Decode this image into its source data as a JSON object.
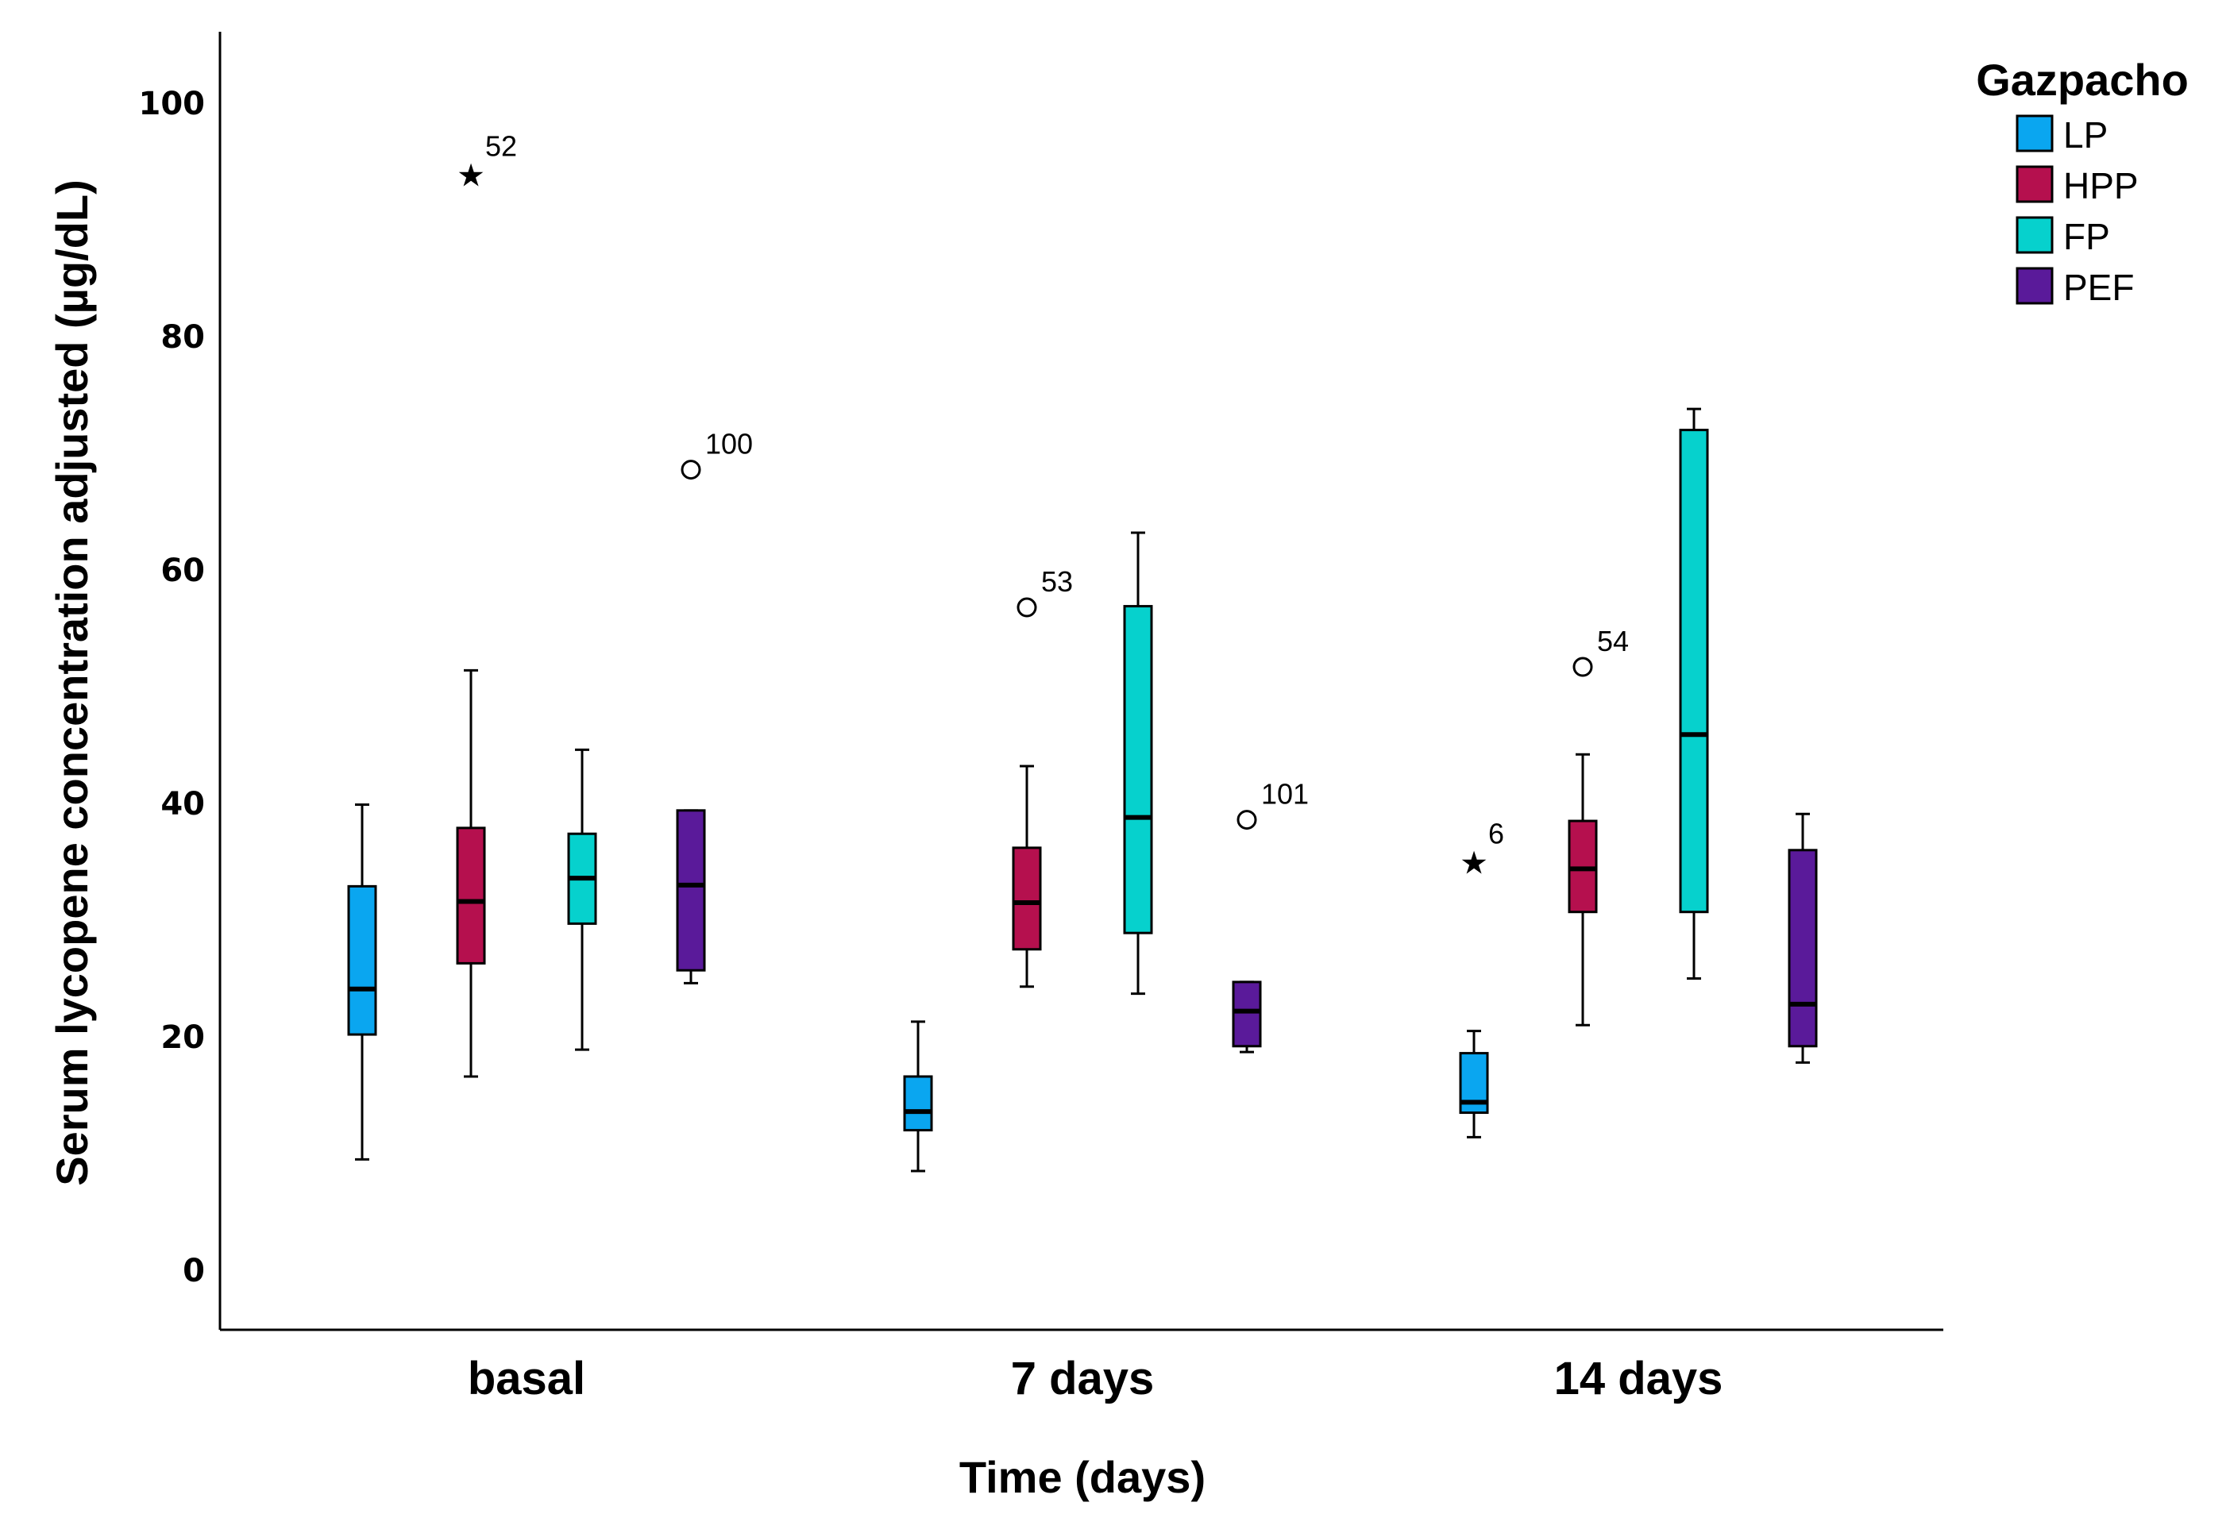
{
  "chart_data": {
    "type": "boxplot",
    "title": "",
    "xlabel": "Time (days)",
    "ylabel": "Serum lycopene concentration adjusted (µg/dL)",
    "ylim": [
      -5,
      106
    ],
    "yticks": [
      0,
      20,
      40,
      60,
      80,
      100
    ],
    "categories": [
      "basal",
      "7 days",
      "14 days"
    ],
    "legend": {
      "title": "Gazpacho",
      "position": "top-right"
    },
    "series": [
      {
        "name": "LP",
        "color": "#0aa6f0",
        "boxes": [
          {
            "whisker_low": 9.5,
            "q1": 20.2,
            "median": 24.1,
            "q3": 32.9,
            "whisker_high": 39.9,
            "outliers": []
          },
          {
            "whisker_low": 8.5,
            "q1": 12.0,
            "median": 13.6,
            "q3": 16.6,
            "whisker_high": 21.3,
            "outliers": []
          },
          {
            "whisker_low": 11.4,
            "q1": 13.5,
            "median": 14.4,
            "q3": 18.6,
            "whisker_high": 20.5,
            "outliers": [
              {
                "value": 35.2,
                "label": "6",
                "marker": "star"
              }
            ]
          }
        ]
      },
      {
        "name": "HPP",
        "color": "#b5104e",
        "boxes": [
          {
            "whisker_low": 16.6,
            "q1": 26.3,
            "median": 31.6,
            "q3": 37.9,
            "whisker_high": 51.4,
            "outliers": [
              {
                "value": 94.1,
                "label": "52",
                "marker": "star"
              }
            ]
          },
          {
            "whisker_low": 24.3,
            "q1": 27.5,
            "median": 31.5,
            "q3": 36.2,
            "whisker_high": 43.2,
            "outliers": [
              {
                "value": 56.8,
                "label": "53",
                "marker": "circle"
              }
            ]
          },
          {
            "whisker_low": 21.0,
            "q1": 30.7,
            "median": 34.4,
            "q3": 38.5,
            "whisker_high": 44.2,
            "outliers": [
              {
                "value": 51.7,
                "label": "54",
                "marker": "circle"
              }
            ]
          }
        ]
      },
      {
        "name": "FP",
        "color": "#06d1cd",
        "boxes": [
          {
            "whisker_low": 18.9,
            "q1": 29.7,
            "median": 33.6,
            "q3": 37.4,
            "whisker_high": 44.6,
            "outliers": []
          },
          {
            "whisker_low": 23.7,
            "q1": 28.9,
            "median": 38.8,
            "q3": 56.9,
            "whisker_high": 63.2,
            "outliers": []
          },
          {
            "whisker_low": 25.0,
            "q1": 30.7,
            "median": 45.9,
            "q3": 72.0,
            "whisker_high": 73.8,
            "outliers": []
          }
        ]
      },
      {
        "name": "PEF",
        "color": "#5a1a9a",
        "boxes": [
          {
            "whisker_low": 24.6,
            "q1": 25.7,
            "median": 33.0,
            "q3": 39.4,
            "whisker_high": 39.4,
            "outliers": [
              {
                "value": 68.6,
                "label": "100",
                "marker": "circle"
              }
            ]
          },
          {
            "whisker_low": 18.7,
            "q1": 19.2,
            "median": 22.2,
            "q3": 24.7,
            "whisker_high": 24.7,
            "outliers": [
              {
                "value": 38.6,
                "label": "101",
                "marker": "circle"
              }
            ]
          },
          {
            "whisker_low": 17.8,
            "q1": 19.2,
            "median": 22.8,
            "q3": 36.0,
            "whisker_high": 39.1,
            "outliers": []
          }
        ]
      }
    ]
  }
}
